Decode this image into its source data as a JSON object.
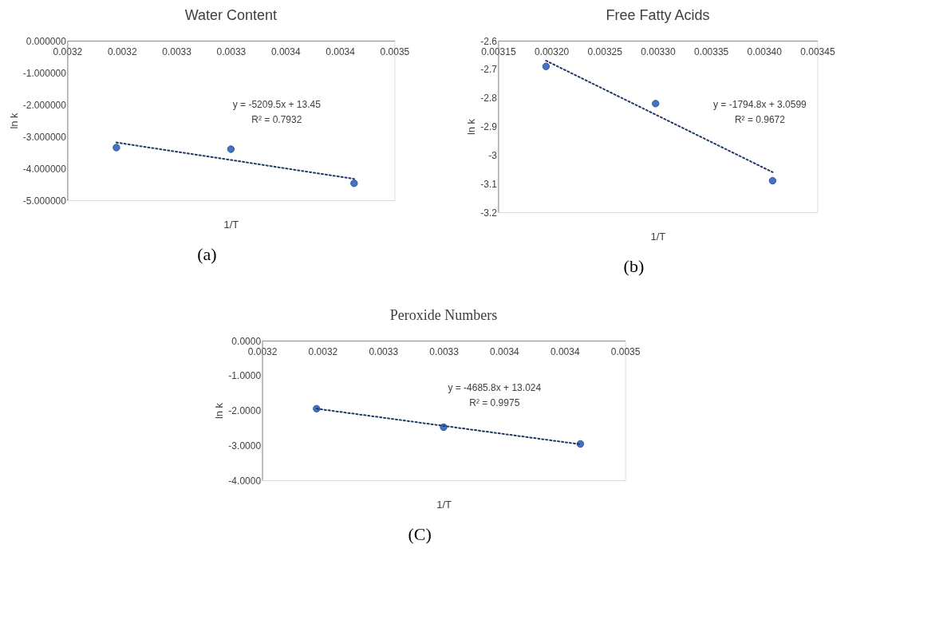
{
  "chart_data": [
    {
      "type": "scatter",
      "title": "Water Content",
      "xlabel": "1/T",
      "ylabel": "ln k",
      "grid": false,
      "xlim": [
        0.00315,
        0.00345
      ],
      "xticks": [
        {
          "value": 0.00315,
          "label": "0.0032"
        },
        {
          "value": 0.0032,
          "label": "0.0032"
        },
        {
          "value": 0.00325,
          "label": "0.0033"
        },
        {
          "value": 0.0033,
          "label": "0.0033"
        },
        {
          "value": 0.00335,
          "label": "0.0034"
        },
        {
          "value": 0.0034,
          "label": "0.0034"
        },
        {
          "value": 0.00345,
          "label": "0.0035"
        }
      ],
      "ylim": [
        -5,
        0
      ],
      "yticks": [
        {
          "value": 0,
          "label": "0.000000"
        },
        {
          "value": -1,
          "label": "-1.000000"
        },
        {
          "value": -2,
          "label": "-2.000000"
        },
        {
          "value": -3,
          "label": "-3.000000"
        },
        {
          "value": -4,
          "label": "-4.000000"
        },
        {
          "value": -5,
          "label": "-5.000000"
        }
      ],
      "series": [
        {
          "color": "#4472c4",
          "marker": "circle",
          "x": [
            0.003195,
            0.0033,
            0.003413
          ],
          "values": [
            -3.35,
            -3.4,
            -4.47
          ]
        },
        {
          "type": "line",
          "color": "#1f3864",
          "line_style": "dotted",
          "x": [
            0.003195,
            0.003413
          ],
          "values": [
            -3.19,
            -4.33
          ]
        }
      ],
      "annotations": [
        "y = -5209.5x + 13.45",
        "R² = 0.7932",
        "(a)"
      ]
    },
    {
      "type": "scatter",
      "title": "Free Fatty Acids",
      "xlabel": "1/T",
      "ylabel": "ln k",
      "grid": false,
      "xlim": [
        0.00315,
        0.00345
      ],
      "xticks": [
        0.00315,
        {
          "value": 0.0032,
          "label": "0.00320"
        },
        0.00325,
        {
          "value": 0.0033,
          "label": "0.00330"
        },
        0.00335,
        {
          "value": 0.0034,
          "label": "0.00340"
        },
        0.00345
      ],
      "ylim": [
        -3.2,
        -2.6
      ],
      "yticks": [
        -2.6,
        -2.7,
        -2.8,
        -2.9,
        -3,
        -3.1,
        -3.2
      ],
      "series": [
        {
          "color": "#4472c4",
          "marker": "circle",
          "x": [
            0.003195,
            0.003298,
            0.003408
          ],
          "values": [
            -2.69,
            -2.82,
            -3.09
          ]
        },
        {
          "type": "line",
          "color": "#1f3864",
          "line_style": "dotted",
          "x": [
            0.003195,
            0.003408
          ],
          "values": [
            -2.67,
            -3.06
          ]
        }
      ],
      "annotations": [
        "y = -1794.8x + 3.0599",
        "R² = 0.9672",
        "(b)"
      ]
    },
    {
      "type": "scatter",
      "title": "Peroxide Numbers",
      "xlabel": "1/T",
      "ylabel": "ln k",
      "grid": false,
      "xlim": [
        0.00315,
        0.00345
      ],
      "xticks": [
        {
          "value": 0.00315,
          "label": "0.0032"
        },
        {
          "value": 0.0032,
          "label": "0.0032"
        },
        {
          "value": 0.00325,
          "label": "0.0033"
        },
        {
          "value": 0.0033,
          "label": "0.0033"
        },
        {
          "value": 0.00335,
          "label": "0.0034"
        },
        {
          "value": 0.0034,
          "label": "0.0034"
        },
        {
          "value": 0.00345,
          "label": "0.0035"
        }
      ],
      "ylim": [
        -4,
        0
      ],
      "yticks": [
        {
          "value": 0,
          "label": "0.0000"
        },
        {
          "value": -1,
          "label": "-1.0000"
        },
        {
          "value": -2,
          "label": "-2.0000"
        },
        {
          "value": -3,
          "label": "-3.0000"
        },
        {
          "value": -4,
          "label": "-4.0000"
        }
      ],
      "series": [
        {
          "color": "#4472c4",
          "marker": "circle",
          "x": [
            0.003195,
            0.0033,
            0.003413
          ],
          "values": [
            -1.95,
            -2.48,
            -2.96
          ]
        },
        {
          "type": "line",
          "color": "#1f3864",
          "line_style": "dotted",
          "x": [
            0.003195,
            0.003413
          ],
          "values": [
            -1.95,
            -2.97
          ]
        }
      ],
      "annotations": [
        "y = -4685.8x + 13.024",
        "R² = 0.9975",
        "(C)"
      ]
    }
  ]
}
